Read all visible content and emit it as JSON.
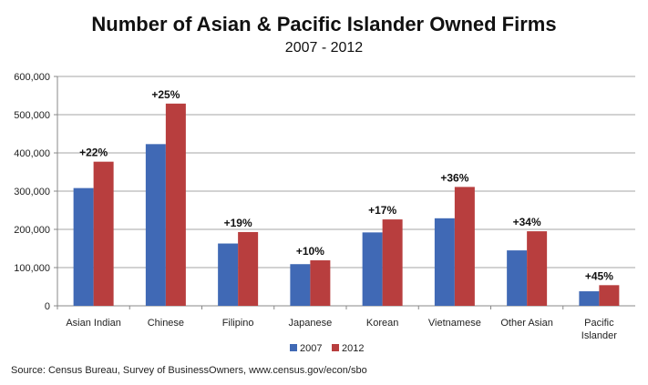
{
  "chart_data": {
    "type": "bar",
    "title": "Number of Asian & Pacific Islander Owned Firms",
    "subtitle": "2007 - 2012",
    "categories": [
      "Asian Indian",
      "Chinese",
      "Filipino",
      "Japanese",
      "Korean",
      "Vietnamese",
      "Other Asian",
      "Pacific Islander"
    ],
    "series": [
      {
        "name": "2007",
        "color": "#4069b5",
        "values": [
          308000,
          423000,
          163000,
          109000,
          192000,
          229000,
          145000,
          38000
        ]
      },
      {
        "name": "2012",
        "color": "#b83e3e",
        "values": [
          377000,
          529000,
          193000,
          119000,
          226000,
          311000,
          195000,
          54000
        ]
      }
    ],
    "data_labels": [
      "+22%",
      "+25%",
      "+19%",
      "+10%",
      "+17%",
      "+36%",
      "+34%",
      "+45%"
    ],
    "yticks": [
      "0",
      "100,000",
      "200,000",
      "300,000",
      "400,000",
      "500,000",
      "600,000"
    ],
    "ylim": [
      0,
      600000
    ],
    "grid": true,
    "legend": "bottom"
  },
  "source": "Source: Census Bureau, Survey of BusinessOwners, www.census.gov/econ/sbo"
}
